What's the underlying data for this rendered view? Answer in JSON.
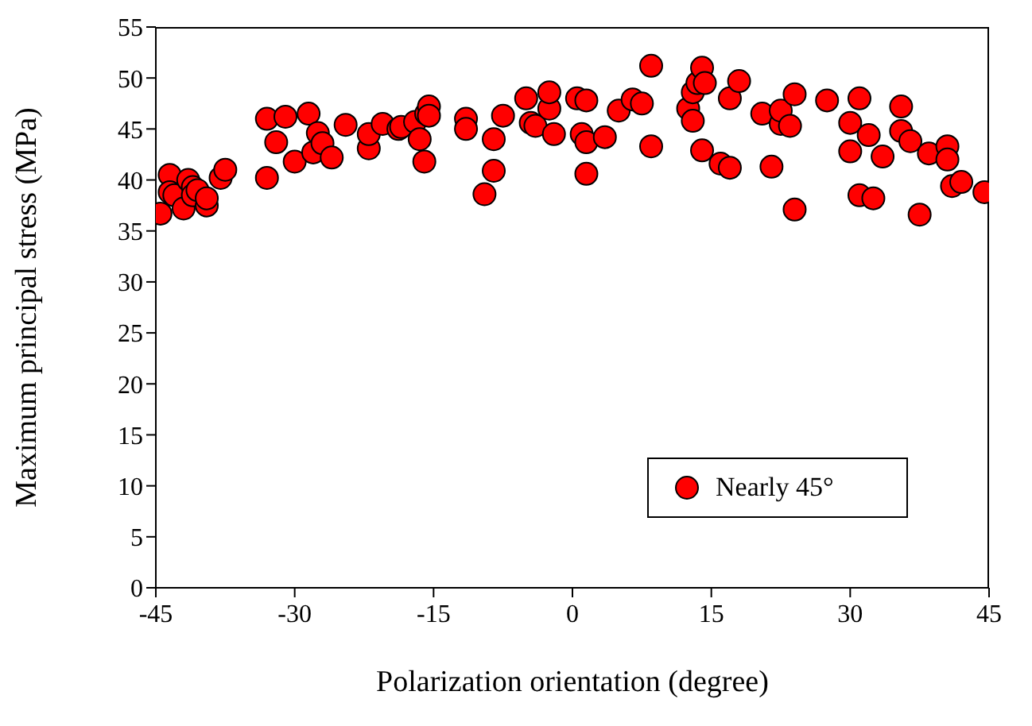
{
  "chart_data": {
    "type": "scatter",
    "xlabel": "Polarization orientation (degree)",
    "ylabel": "Maximum principal stress (MPa)",
    "xlim": [
      -45,
      45
    ],
    "xticks": [
      -45,
      -30,
      -15,
      0,
      15,
      30,
      45
    ],
    "ylim": [
      0,
      55
    ],
    "yticks": [
      0,
      5,
      10,
      15,
      20,
      25,
      30,
      35,
      40,
      45,
      50,
      55
    ],
    "grid": false,
    "legend": "bottom right",
    "marker": "circle",
    "series": [
      {
        "name": "Nearly 45°",
        "color": "#ff0000",
        "x": [
          -44.5,
          -43.5,
          -43.5,
          -43,
          -42,
          -41.5,
          -41,
          -41,
          -40.5,
          -39.5,
          -39.5,
          -38,
          -37.5,
          -33,
          -33,
          -32,
          -31,
          -30,
          -28.5,
          -28,
          -27.5,
          -27,
          -26,
          -24.5,
          -22,
          -22,
          -20.5,
          -18.8,
          -18.5,
          -17,
          -16.5,
          -16,
          -15.8,
          -15.5,
          -15.5,
          -11.5,
          -11.5,
          -9.5,
          -8.5,
          -8.5,
          -7.5,
          -5,
          -4.5,
          -4,
          -2.5,
          -2.5,
          -2,
          0.5,
          1,
          1.5,
          1.5,
          1.5,
          3.5,
          5,
          6.5,
          7.5,
          8.5,
          8.5,
          12.5,
          13,
          13,
          13.5,
          14,
          14,
          14.3,
          16,
          17,
          17,
          18,
          20.5,
          21.5,
          22.5,
          22.5,
          23.5,
          24,
          24,
          27.5,
          30,
          30,
          31,
          31,
          32,
          32.5,
          33.5,
          35.5,
          35.5,
          36.5,
          37.5,
          38.5,
          40.5,
          40.5,
          41,
          42,
          44.5
        ],
        "values": [
          36.7,
          40.5,
          38.8,
          38.5,
          37.2,
          40,
          39.3,
          38.5,
          39,
          37.5,
          38.2,
          40.2,
          41,
          46,
          40.2,
          43.7,
          46.2,
          41.8,
          46.5,
          42.7,
          44.6,
          43.6,
          42.2,
          45.4,
          43.1,
          44.5,
          45.5,
          45,
          45.2,
          45.7,
          44,
          41.8,
          46.5,
          47.2,
          46.3,
          46,
          45,
          38.6,
          40.9,
          44,
          46.3,
          48,
          45.6,
          45.3,
          47,
          48.6,
          44.5,
          48,
          44.5,
          43.7,
          47.8,
          40.6,
          44.2,
          46.8,
          47.9,
          47.5,
          51.2,
          43.3,
          47,
          45.8,
          48.6,
          49.5,
          42.9,
          51,
          49.5,
          41.6,
          41.2,
          48,
          49.7,
          46.5,
          41.3,
          45.5,
          46.8,
          45.3,
          48.4,
          37.1,
          47.8,
          45.6,
          42.8,
          48,
          38.5,
          44.4,
          38.2,
          42.3,
          47.2,
          44.8,
          43.8,
          36.6,
          42.6,
          43.3,
          42,
          39.4,
          39.8,
          38.8
        ]
      }
    ]
  }
}
